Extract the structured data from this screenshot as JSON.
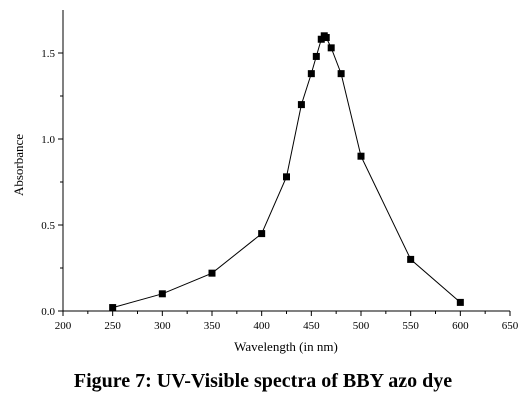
{
  "chart_data": {
    "type": "line",
    "caption": "Figure 7: UV-Visible spectra of BBY azo dye",
    "xlabel": "Wavelength (in nm)",
    "ylabel": "Absorbance",
    "xlim": [
      200,
      650
    ],
    "ylim": [
      0,
      1.75
    ],
    "xticks": [
      200,
      250,
      300,
      350,
      400,
      450,
      500,
      550,
      600,
      650
    ],
    "yticks": [
      0.0,
      0.5,
      1.0,
      1.5
    ],
    "ytick_labels": [
      "0.0",
      "0.5",
      "1.0",
      "1.5"
    ],
    "minor_yticks": [
      0.25,
      0.75,
      1.25
    ],
    "grid": false,
    "marker": "square",
    "series": [
      {
        "x": [
          250,
          300,
          350,
          400,
          425,
          440,
          450,
          455,
          460,
          463,
          465,
          470,
          480,
          500,
          550,
          600
        ],
        "y": [
          0.02,
          0.1,
          0.22,
          0.45,
          0.78,
          1.2,
          1.38,
          1.48,
          1.58,
          1.6,
          1.59,
          1.53,
          1.38,
          0.9,
          0.3,
          0.05
        ]
      }
    ]
  }
}
